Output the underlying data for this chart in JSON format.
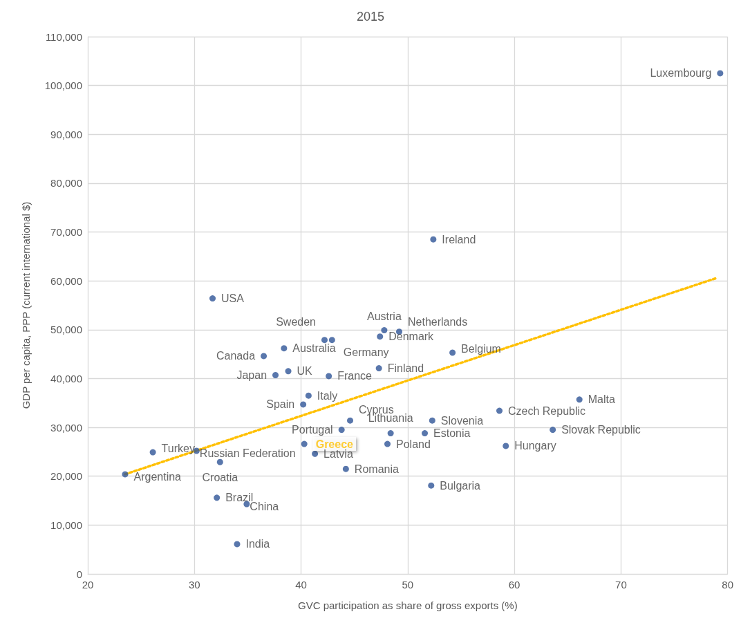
{
  "chart_data": {
    "type": "scatter",
    "title": "2015",
    "xlabel": "GVC participation as share of gross exports (%)",
    "ylabel": "GDP per capita, PPP (current international $)",
    "xlim": [
      20,
      80
    ],
    "xticks": [
      20,
      30,
      40,
      50,
      60,
      70,
      80
    ],
    "ylim": [
      0,
      110000
    ],
    "yticks": [
      {
        "value": 0,
        "label": "0"
      },
      {
        "value": 10000,
        "label": "10,000"
      },
      {
        "value": 20000,
        "label": "20,000"
      },
      {
        "value": 30000,
        "label": "30,000"
      },
      {
        "value": 40000,
        "label": "40,000"
      },
      {
        "value": 50000,
        "label": "50,000"
      },
      {
        "value": 60000,
        "label": "60,000"
      },
      {
        "value": 70000,
        "label": "70,000"
      },
      {
        "value": 80000,
        "label": "80,000"
      },
      {
        "value": 90000,
        "label": "90,000"
      },
      {
        "value": 100000,
        "label": "100,000"
      },
      {
        "value": 110000,
        "label": "110,000"
      }
    ],
    "grid": true,
    "marker": "circle",
    "series": [
      {
        "type": "scatter",
        "color": "#2f5597",
        "x": [
          79.3,
          52.4,
          31.7,
          47.8,
          49.2,
          47.4,
          42.2,
          42.9,
          38.4,
          36.5,
          37.6,
          38.8,
          42.6,
          47.3,
          54.2,
          40.7,
          40.2,
          44.6,
          48.4,
          52.3,
          51.6,
          43.8,
          40.3,
          41.3,
          48.1,
          44.2,
          52.2,
          58.6,
          66.1,
          63.6,
          59.2,
          26.1,
          30.2,
          32.4,
          23.5,
          32.1,
          34.9,
          34.0
        ],
        "values": [
          102500,
          68500,
          56400,
          49900,
          49600,
          48600,
          47900,
          47900,
          46200,
          44600,
          40700,
          41500,
          40500,
          42100,
          45300,
          36500,
          34700,
          31400,
          28800,
          31400,
          28800,
          29500,
          26600,
          24600,
          26600,
          21500,
          18100,
          33400,
          35700,
          29500,
          26200,
          24900,
          25200,
          22900,
          20400,
          15600,
          14300,
          6100
        ],
        "value_labels": [
          "Luxembourg",
          "Ireland",
          "USA",
          "Austria",
          "Netherlands",
          "Denmark",
          "Sweden",
          "Germany",
          "Australia",
          "Canada",
          "Japan",
          "UK",
          "France",
          "Finland",
          "Belgium",
          "Italy",
          "Spain",
          "Cyprus",
          "Lithuania",
          "Slovenia",
          "Estonia",
          "Portugal",
          null,
          "Latvia",
          "Poland",
          "Romania",
          "Bulgaria",
          "Czech Republic",
          "Malta",
          "Slovak Republic",
          "Hungary",
          "Turkey",
          "Russian Federation",
          "Croatia",
          "Argentina",
          "Brazil",
          "China",
          "India"
        ]
      },
      {
        "type": "line",
        "color": "#ffc000",
        "line_style": "dotted",
        "marker": "none",
        "x": [
          23.5,
          79.0
        ],
        "values": [
          20400,
          60600
        ]
      }
    ],
    "annotations": [
      {
        "text": "Greece",
        "x": 40.3,
        "y": 26600
      }
    ]
  }
}
